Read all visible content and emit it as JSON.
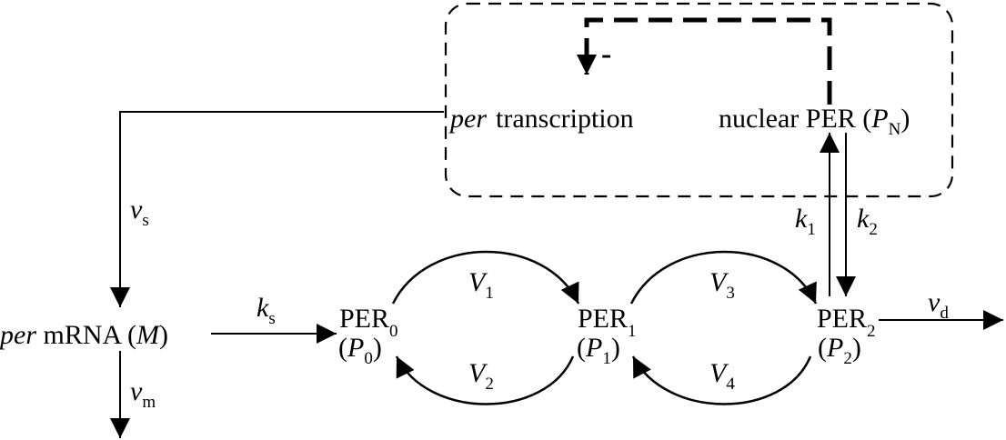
{
  "diagram": {
    "feedback_sign": "-",
    "transcription": {
      "per": "per",
      "label": "transcription"
    },
    "nuclear": {
      "label": "nuclear PER (",
      "sym": "P",
      "sub": "N",
      "close": ")"
    },
    "mrna": {
      "per": "per",
      "label": " mRNA (",
      "sym": "M",
      "close": ")"
    },
    "per0": {
      "label": "PER",
      "sub": "0",
      "open": "(",
      "sym": "P",
      "close": ")"
    },
    "per1": {
      "label": "PER",
      "sub": "1",
      "open": "(",
      "sym": "P",
      "close": ")"
    },
    "per2": {
      "label": "PER",
      "sub": "2",
      "open": "(",
      "sym": "P",
      "close": ")"
    },
    "rates": {
      "vs": {
        "sym": "v",
        "sub": "s"
      },
      "vm": {
        "sym": "v",
        "sub": "m"
      },
      "ks": {
        "sym": "k",
        "sub": "s"
      },
      "vd": {
        "sym": "v",
        "sub": "d"
      },
      "k1": {
        "sym": "k",
        "sub": "1"
      },
      "k2": {
        "sym": "k",
        "sub": "2"
      },
      "V1": {
        "sym": "V",
        "sub": "1"
      },
      "V2": {
        "sym": "V",
        "sub": "2"
      },
      "V3": {
        "sym": "V",
        "sub": "3"
      },
      "V4": {
        "sym": "V",
        "sub": "4"
      }
    }
  }
}
